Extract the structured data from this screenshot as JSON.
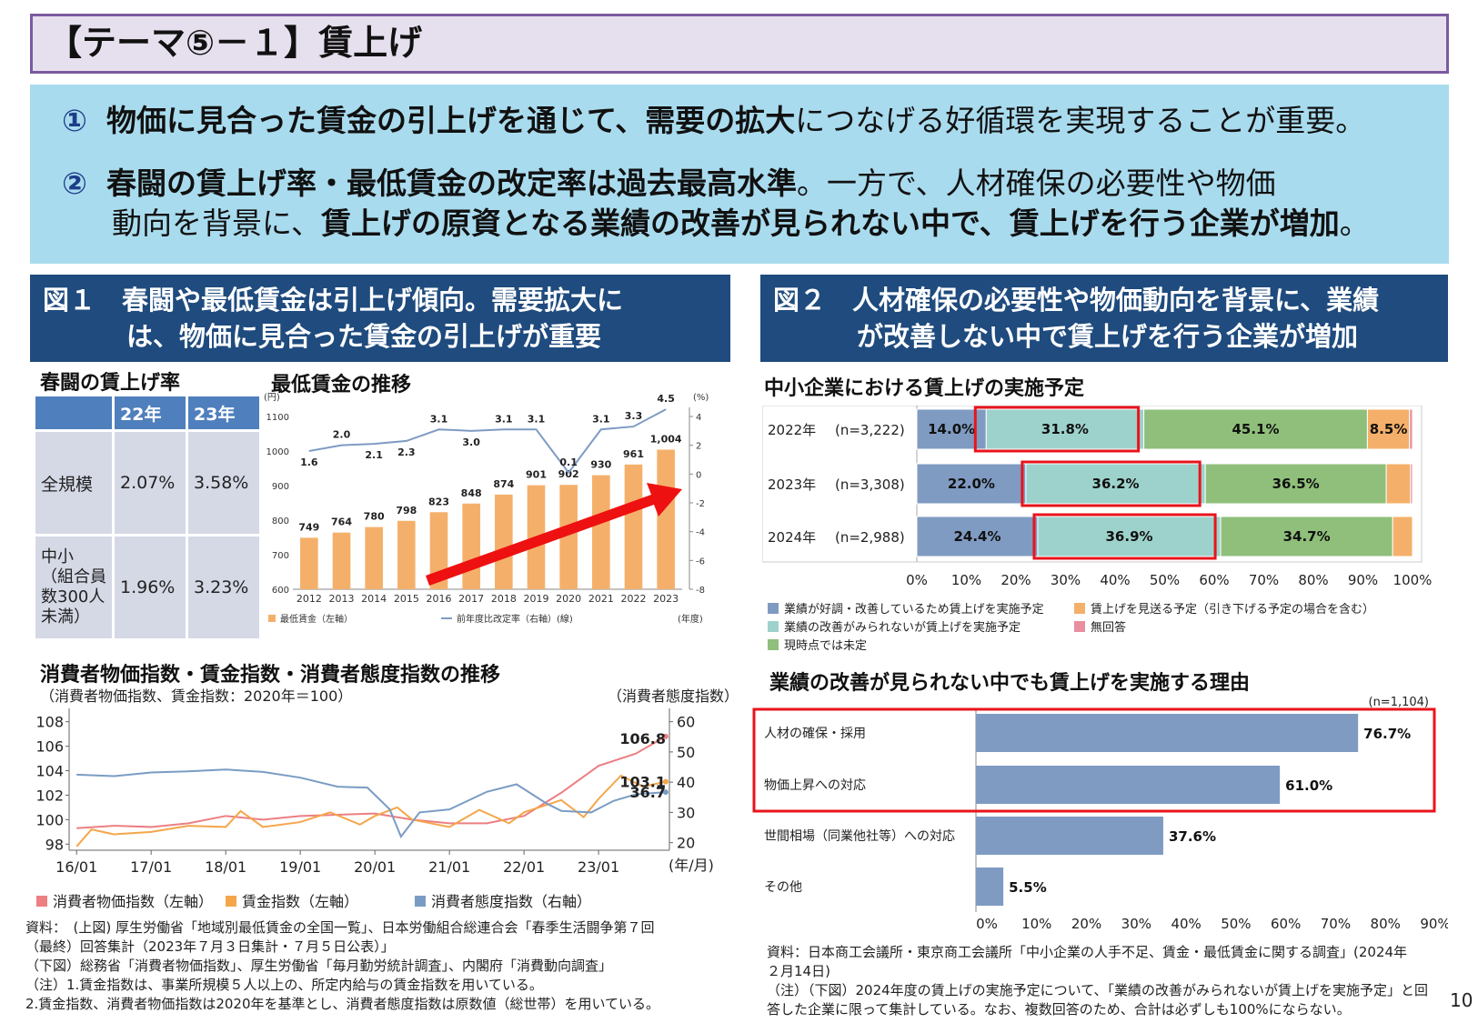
{
  "header": {
    "title": "【テーマ⑤－１】賃上げ"
  },
  "summary": {
    "line1_num": "①",
    "line1_bold": "物価に見合った賃金の引上げを通じて、需要の拡大",
    "line1_rest": "につなげる好循環を実現することが重要。",
    "line2_num": "②",
    "line2_bold": "春闘の賃上げ率・最低賃金の改定率は過去最高水準",
    "line2_rest": "。一方で、人材確保の必要性や物価",
    "line3_pre": "動向を背景に、",
    "line3_bold": "賃上げの原資となる業績の改善が見られない中で、賃上げを行う企業が増加",
    "line3_end": "。"
  },
  "figure1": {
    "heading_line1": "図１　春闘や最低賃金は引上げ傾向。需要拡大に",
    "heading_line2": "は、物価に見合った賃金の引上げが重要"
  },
  "figure2": {
    "heading_line1": "図２　人材確保の必要性や物価動向を背景に、業績",
    "heading_line2": "が改善しない中で賃上げを行う企業が増加"
  },
  "shunto_table": {
    "title": "春闘の賃上げ率",
    "headers": [
      "",
      "22年",
      "23年"
    ],
    "rows": [
      {
        "label": "全規模",
        "v22": "2.07%",
        "v23": "3.58%"
      },
      {
        "label": "中小\n（組合員\n数300人\n未満）",
        "v22": "1.96%",
        "v23": "3.23%"
      }
    ]
  },
  "colors": {
    "bar_orange": "#f4b06a",
    "line_blue": "#7f9bc2",
    "arrow_red": "#ee1111",
    "cpi_red": "#ec7f82",
    "wage_orange": "#f4a64a",
    "sentiment_blue": "#7a9cc4",
    "good_blue": "#7f9bc2",
    "teal": "#9dd2cc",
    "green": "#8fbf7a",
    "cut_orange": "#f4b06a",
    "no_answer_pink": "#e98ea0",
    "highlight_red": "#e8141c"
  },
  "chart_data": [
    {
      "id": "min-wage",
      "type": "bar",
      "title": "最低賃金の推移",
      "left_unit": "(円)",
      "right_unit": "(%)",
      "x_unit": "(年度)",
      "categories": [
        "2012",
        "2013",
        "2014",
        "2015",
        "2016",
        "2017",
        "2018",
        "2019",
        "2020",
        "2021",
        "2022",
        "2023"
      ],
      "series": [
        {
          "name": "最低賃金（左軸）",
          "type": "bar",
          "values": [
            749,
            764,
            780,
            798,
            823,
            848,
            874,
            901,
            902,
            930,
            961,
            1004
          ],
          "labels": [
            "749",
            "764",
            "780",
            "798",
            "823",
            "848",
            "874",
            "901",
            "902",
            "930",
            "961",
            "1,004"
          ]
        },
        {
          "name": "前年度比改定率（右軸）(線)",
          "type": "line",
          "values": [
            1.6,
            2.0,
            2.1,
            2.3,
            3.1,
            3.0,
            3.1,
            3.1,
            0.1,
            3.1,
            3.3,
            4.5
          ],
          "labels": [
            "1.6",
            "2.0",
            "2.1",
            "2.3",
            "3.1",
            "3.0",
            "3.1",
            "3.1",
            "0.1",
            "3.1",
            "3.3",
            "4.5"
          ]
        }
      ],
      "ylim": [
        600,
        1100
      ],
      "y_ticks": [
        "600",
        "700",
        "800",
        "900",
        "1000",
        "1100"
      ],
      "y2lim": [
        -8,
        4
      ],
      "y2_ticks": [
        "-8",
        "-6",
        "-4",
        "-2",
        "0",
        "2",
        "4"
      ]
    },
    {
      "id": "price-index",
      "type": "line",
      "title": "消費者物価指数・賃金指数・消費者態度指数の推移",
      "subtitle": "（消費者物価指数、賃金指数：2020年＝100）",
      "right_unit": "（消費者態度指数）",
      "x_unit": "(年/月)",
      "x_ticks": [
        "16/01",
        "17/01",
        "18/01",
        "19/01",
        "20/01",
        "21/01",
        "22/01",
        "23/01"
      ],
      "y_ticks": [
        "98",
        "100",
        "102",
        "104",
        "106",
        "108"
      ],
      "y2_ticks": [
        "20",
        "30",
        "40",
        "50",
        "60"
      ],
      "ylim": [
        97.5,
        108.5
      ],
      "y2lim": [
        17.5,
        62
      ],
      "end_labels": [
        "106.8",
        "103.1",
        "36.7"
      ],
      "series": [
        {
          "name": "消費者物価指数（左軸）",
          "points": [
            [
              2016.0,
              99.3
            ],
            [
              2016.5,
              99.5
            ],
            [
              2017.0,
              99.4
            ],
            [
              2017.5,
              99.7
            ],
            [
              2018.0,
              100.3
            ],
            [
              2018.5,
              100.0
            ],
            [
              2019.0,
              100.3
            ],
            [
              2019.5,
              100.4
            ],
            [
              2020.0,
              100.5
            ],
            [
              2020.5,
              100.0
            ],
            [
              2021.0,
              99.7
            ],
            [
              2021.5,
              99.7
            ],
            [
              2022.0,
              100.3
            ],
            [
              2022.5,
              102.2
            ],
            [
              2023.0,
              104.4
            ],
            [
              2023.5,
              105.4
            ],
            [
              2023.9,
              106.8
            ]
          ]
        },
        {
          "name": "賃金指数（左軸）",
          "points": [
            [
              2016.0,
              97.8
            ],
            [
              2016.2,
              99.2
            ],
            [
              2016.5,
              98.8
            ],
            [
              2017.0,
              99.0
            ],
            [
              2017.5,
              99.5
            ],
            [
              2018.0,
              99.4
            ],
            [
              2018.2,
              100.7
            ],
            [
              2018.5,
              99.4
            ],
            [
              2019.0,
              99.8
            ],
            [
              2019.4,
              100.6
            ],
            [
              2019.8,
              99.6
            ],
            [
              2020.0,
              100.3
            ],
            [
              2020.3,
              101.0
            ],
            [
              2020.5,
              100.0
            ],
            [
              2021.0,
              99.4
            ],
            [
              2021.4,
              100.8
            ],
            [
              2021.8,
              99.7
            ],
            [
              2022.0,
              100.6
            ],
            [
              2022.5,
              101.6
            ],
            [
              2022.8,
              100.2
            ],
            [
              2023.0,
              101.7
            ],
            [
              2023.3,
              103.6
            ],
            [
              2023.6,
              102.7
            ],
            [
              2023.9,
              103.1
            ]
          ]
        },
        {
          "name": "消費者態度指数（右軸）",
          "points": [
            [
              2016.0,
              42.5
            ],
            [
              2016.5,
              42.0
            ],
            [
              2017.0,
              43.2
            ],
            [
              2017.5,
              43.6
            ],
            [
              2018.0,
              44.2
            ],
            [
              2018.5,
              43.4
            ],
            [
              2019.0,
              41.5
            ],
            [
              2019.5,
              38.5
            ],
            [
              2019.9,
              38.2
            ],
            [
              2020.2,
              31.0
            ],
            [
              2020.35,
              22.0
            ],
            [
              2020.6,
              30.0
            ],
            [
              2021.0,
              31.0
            ],
            [
              2021.5,
              36.8
            ],
            [
              2021.9,
              39.3
            ],
            [
              2022.3,
              33.0
            ],
            [
              2022.5,
              30.5
            ],
            [
              2022.9,
              30.0
            ],
            [
              2023.2,
              33.8
            ],
            [
              2023.5,
              36.0
            ],
            [
              2023.9,
              36.7
            ]
          ]
        }
      ]
    },
    {
      "id": "wage-plan",
      "type": "bar",
      "stacked": true,
      "orientation": "horizontal",
      "title": "中小企業における賃上げの実施予定",
      "categories": [
        "2022年",
        "2023年",
        "2024年"
      ],
      "n_labels": [
        "(n=3,222)",
        "(n=3,308)",
        "(n=2,988)"
      ],
      "x_ticks": [
        "0%",
        "10%",
        "20%",
        "30%",
        "40%",
        "50%",
        "60%",
        "70%",
        "80%",
        "90%",
        "100%"
      ],
      "xlim": [
        0,
        100
      ],
      "series": [
        {
          "name": "業績が好調・改善しているため賃上げを実施予定",
          "values": [
            14.0,
            22.0,
            24.4
          ],
          "labels": [
            "14.0%",
            "22.0%",
            "24.4%"
          ]
        },
        {
          "name": "業績の改善がみられないが賃上げを実施予定",
          "values": [
            31.8,
            36.2,
            36.9
          ],
          "labels": [
            "31.8%",
            "36.2%",
            "36.9%"
          ]
        },
        {
          "name": "現時点では未定",
          "values": [
            45.1,
            36.5,
            34.7
          ],
          "labels": [
            "45.1%",
            "36.5%",
            "34.7%"
          ]
        },
        {
          "name": "賃上げを見送る予定（引き下げる予定の場合を含む）",
          "values": [
            8.5,
            4.9,
            4.0
          ],
          "labels": [
            "8.5%",
            "",
            ""
          ]
        },
        {
          "name": "無回答",
          "values": [
            0.6,
            0.4,
            0.0
          ],
          "labels": [
            "",
            "",
            ""
          ]
        }
      ]
    },
    {
      "id": "reasons",
      "type": "bar",
      "orientation": "horizontal",
      "title": "業績の改善が見られない中でも賃上げを実施する理由",
      "n_label": "(n=1,104)",
      "categories": [
        "人材の確保・採用",
        "物価上昇への対応",
        "世間相場（同業他社等）への対応",
        "その他"
      ],
      "values": [
        76.7,
        61.0,
        37.6,
        5.5
      ],
      "labels": [
        "76.7%",
        "61.0%",
        "37.6%",
        "5.5%"
      ],
      "xlim": [
        0,
        90
      ],
      "x_ticks": [
        "0%",
        "10%",
        "20%",
        "30%",
        "40%",
        "50%",
        "60%",
        "70%",
        "80%",
        "90%"
      ]
    }
  ],
  "notes": {
    "left": [
      "資料：　(上図) 厚生労働省「地域別最低賃金の全国一覧」、日本労働組合総連合会「春季生活闘争第７回",
      "（最終）回答集計（2023年７月３日集計・７月５日公表）」",
      "（下図）総務省「消費者物価指数」、厚生労働省「毎月勤労統計調査」、内閣府「消費動向調査」",
      "（注）1.賃金指数は、事業所規模５人以上の、所定内給与の賃金指数を用いている。",
      "2.賃金指数、消費者物価指数は2020年を基準とし、消費者態度指数は原数値（総世帯）を用いている。"
    ],
    "right": [
      "資料：日本商工会議所・東京商工会議所「中小企業の人手不足、賃金・最低賃金に関する調査」(2024年",
      "２月14日)",
      "（注）（下図）2024年度の賃上げの実施予定について、「業績の改善がみられないが賃上げを実施予定」と回",
      "答した企業に限って集計している。なお、複数回答のため、合計は必ずしも100%にならない。"
    ]
  },
  "page_number": "10"
}
